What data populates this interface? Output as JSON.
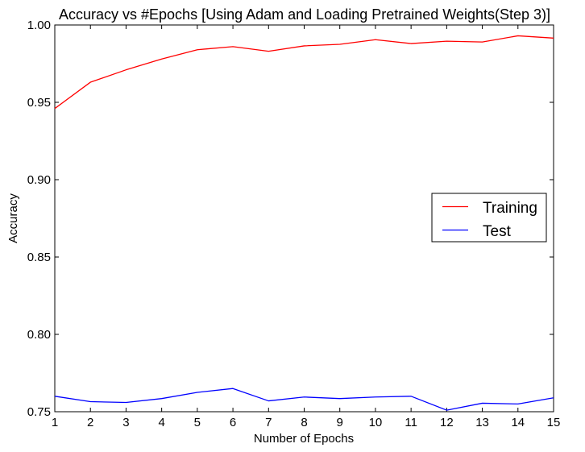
{
  "chart_data": {
    "type": "line",
    "title": "Accuracy vs #Epochs [Using Adam and Loading Pretrained Weights(Step 3)]",
    "xlabel": "Number of Epochs",
    "ylabel": "Accuracy",
    "xlim": [
      1,
      15
    ],
    "ylim": [
      0.75,
      1.0
    ],
    "x": [
      1,
      2,
      3,
      4,
      5,
      6,
      7,
      8,
      9,
      10,
      11,
      12,
      13,
      14,
      15
    ],
    "xticks": [
      "1",
      "2",
      "3",
      "4",
      "5",
      "6",
      "7",
      "8",
      "9",
      "10",
      "11",
      "12",
      "13",
      "14",
      "15"
    ],
    "yticks": [
      "0.75",
      "0.80",
      "0.85",
      "0.90",
      "0.95",
      "1.00"
    ],
    "ytick_values": [
      0.75,
      0.8,
      0.85,
      0.9,
      0.95,
      1.0
    ],
    "grid": false,
    "legend_position": "right",
    "series": [
      {
        "name": "Training",
        "color": "#ff0000",
        "values": [
          0.946,
          0.963,
          0.971,
          0.978,
          0.984,
          0.986,
          0.983,
          0.9865,
          0.9875,
          0.9905,
          0.988,
          0.9895,
          0.989,
          0.993,
          0.9915
        ]
      },
      {
        "name": "Test",
        "color": "#0000ff",
        "values": [
          0.76,
          0.7565,
          0.756,
          0.7585,
          0.7625,
          0.765,
          0.757,
          0.7595,
          0.7585,
          0.7595,
          0.76,
          0.751,
          0.7555,
          0.755,
          0.759
        ]
      }
    ]
  }
}
